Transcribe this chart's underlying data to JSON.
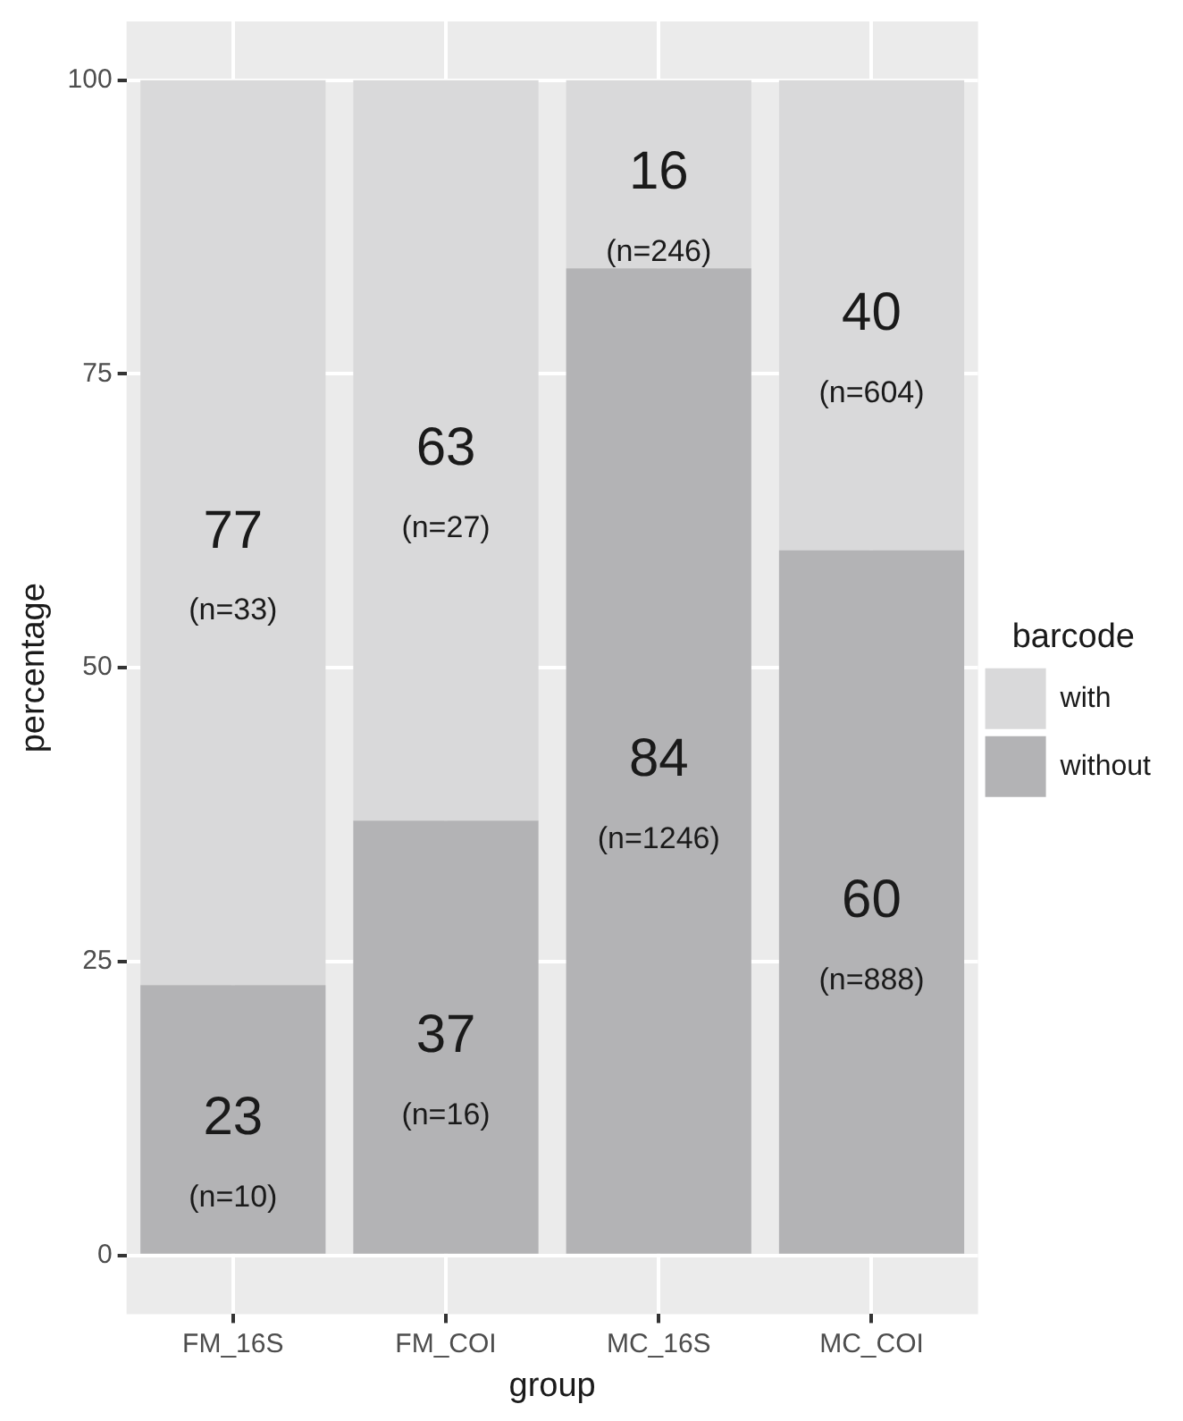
{
  "chart_data": {
    "type": "bar",
    "xlabel": "group",
    "ylabel": "percentage",
    "legend_title": "barcode",
    "categories": [
      "FM_16S",
      "FM_COI",
      "MC_16S",
      "MC_COI"
    ],
    "stacked": true,
    "ylim": [
      -5,
      105
    ],
    "yticks": [
      0,
      25,
      50,
      75,
      100
    ],
    "grid": true,
    "legend": "right",
    "series": [
      {
        "name": "without",
        "color": "#b3b3b5",
        "values": [
          23,
          37,
          84,
          60
        ],
        "value_labels": [
          "23",
          "37",
          "84",
          "60"
        ]
      },
      {
        "name": "with",
        "color": "#d9d9da",
        "values": [
          77,
          63,
          16,
          40
        ],
        "value_labels": [
          "77",
          "63",
          "16",
          "40"
        ]
      }
    ],
    "annotations": [
      "(n=10)",
      "(n=16)",
      "(n=1246)",
      "(n=888)",
      "(n=33)",
      "(n=27)",
      "(n=246)",
      "(n=604)"
    ]
  }
}
